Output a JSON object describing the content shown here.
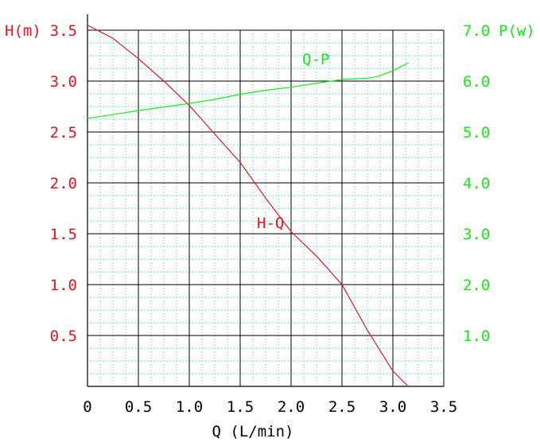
{
  "chart_data": {
    "type": "line",
    "xlabel": "Q (L/min)",
    "ylabel_left": "H(m)",
    "ylabel_right": "P(w)",
    "xlim": [
      0,
      3.5
    ],
    "ylim_left": [
      0,
      3.5
    ],
    "ylim_right": [
      0,
      7.0
    ],
    "x_ticks": [
      "0",
      "0.5",
      "1.0",
      "1.5",
      "2.0",
      "2.5",
      "3.0",
      "3.5"
    ],
    "y_left_ticks": [
      "0.5",
      "1.0",
      "1.5",
      "2.0",
      "2.5",
      "3.0",
      "3.5"
    ],
    "y_right_ticks": [
      "1.0",
      "2.0",
      "3.0",
      "4.0",
      "5.0",
      "6.0",
      "7.0"
    ],
    "grid": true,
    "colors": {
      "hq": "#e8141e",
      "qp": "#18e818",
      "grid_major": "#000000",
      "grid_minor": "#33ccff"
    },
    "series": [
      {
        "name": "H-Q",
        "axis": "left",
        "x": [
          0,
          0.25,
          0.5,
          0.75,
          1.0,
          1.25,
          1.5,
          1.75,
          2.0,
          2.25,
          2.5,
          2.75,
          3.0,
          3.15
        ],
        "values": [
          3.55,
          3.42,
          3.22,
          3.0,
          2.76,
          2.48,
          2.2,
          1.85,
          1.52,
          1.28,
          1.0,
          0.55,
          0.15,
          0.0
        ]
      },
      {
        "name": "Q-P",
        "axis": "right",
        "x": [
          0,
          0.25,
          0.5,
          0.75,
          1.0,
          1.25,
          1.5,
          1.75,
          2.0,
          2.25,
          2.5,
          2.75,
          2.85,
          3.0,
          3.15
        ],
        "values": [
          5.27,
          5.34,
          5.42,
          5.49,
          5.56,
          5.64,
          5.74,
          5.82,
          5.88,
          5.96,
          6.03,
          6.06,
          6.09,
          6.2,
          6.36
        ]
      }
    ]
  }
}
